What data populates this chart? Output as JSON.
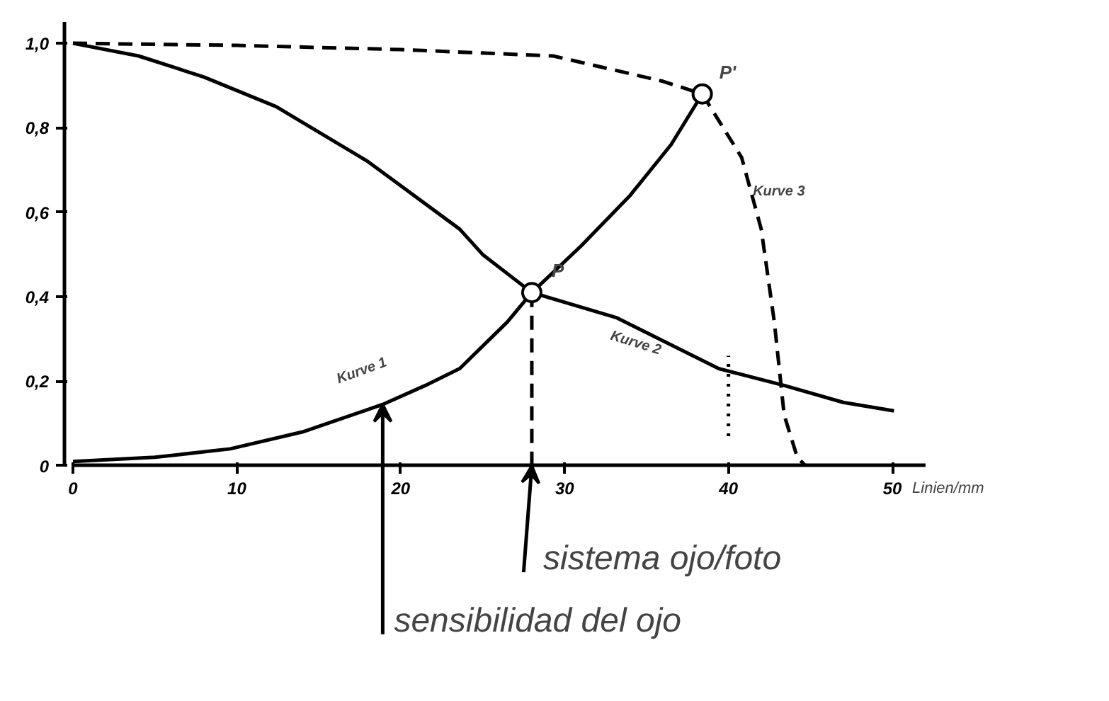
{
  "chart_data": {
    "type": "line",
    "xlabel": "Linien/mm",
    "xlim": [
      0,
      52
    ],
    "ylim": [
      0,
      1.05
    ],
    "xticks": [
      0,
      10,
      20,
      30,
      40,
      50
    ],
    "yticks": [
      0,
      {
        "value": 0.2,
        "label": "0,2"
      },
      {
        "value": 0.4,
        "label": "0,4"
      },
      {
        "value": 0.6,
        "label": "0,6"
      },
      {
        "value": 0.8,
        "label": "0,8"
      },
      {
        "value": 1.0,
        "label": "1,0"
      }
    ],
    "series": [
      {
        "color": "#000000",
        "line_style": "solid",
        "x": [
          0,
          5,
          9.6,
          14,
          18.9,
          21.5,
          23.6,
          26.5,
          28,
          31,
          34,
          36.5,
          38.4
        ],
        "values": [
          0.01,
          0.02,
          0.04,
          0.08,
          0.145,
          0.19,
          0.23,
          0.34,
          0.41,
          0.52,
          0.64,
          0.76,
          0.88
        ]
      },
      {
        "color": "#000000",
        "line_style": "solid",
        "x": [
          0,
          4,
          8,
          12.4,
          18,
          23.6,
          25,
          28,
          33.2,
          39.4,
          43.4,
          47,
          50.1
        ],
        "values": [
          1.0,
          0.97,
          0.92,
          0.85,
          0.72,
          0.56,
          0.5,
          0.41,
          0.35,
          0.23,
          0.19,
          0.15,
          0.13
        ]
      },
      {
        "color": "#000000",
        "line_style": "dashed",
        "x": [
          0,
          10,
          20,
          29.3,
          36,
          38.4,
          40.8,
          42,
          42.8,
          43.4,
          44.2,
          44.7
        ],
        "values": [
          1.0,
          0.995,
          0.985,
          0.97,
          0.91,
          0.88,
          0.73,
          0.56,
          0.34,
          0.12,
          0.02,
          0
        ]
      },
      {
        "color": "#000000",
        "line_style": "dashed",
        "x": [
          28,
          28
        ],
        "values": [
          0,
          0.41
        ]
      },
      {
        "color": "#000000",
        "line_style": "dotted",
        "x": [
          40,
          40
        ],
        "values": [
          0.07,
          0.26
        ]
      },
      {
        "type": "scatter",
        "color": "#000000",
        "marker": "circle",
        "x": [
          28,
          38.4
        ],
        "values": [
          0.41,
          0.88
        ]
      }
    ],
    "annotations": [
      {
        "text": "Kurve 1",
        "x": 18.9,
        "y": 0.145
      },
      {
        "text": "Kurve 2",
        "x": 33.2,
        "y": 0.35
      },
      {
        "text": "Kurve 3",
        "x": 40.8,
        "y": 0.73
      },
      {
        "text": "P",
        "x": 28,
        "y": 0.41
      },
      {
        "text": "P'",
        "x": 38.4,
        "y": 0.88
      },
      {
        "text": "sistema ojo/foto",
        "x": 28,
        "y": 0
      },
      {
        "text": "sensibilidad del ojo",
        "x": 18.9,
        "y": 0.145
      }
    ]
  }
}
